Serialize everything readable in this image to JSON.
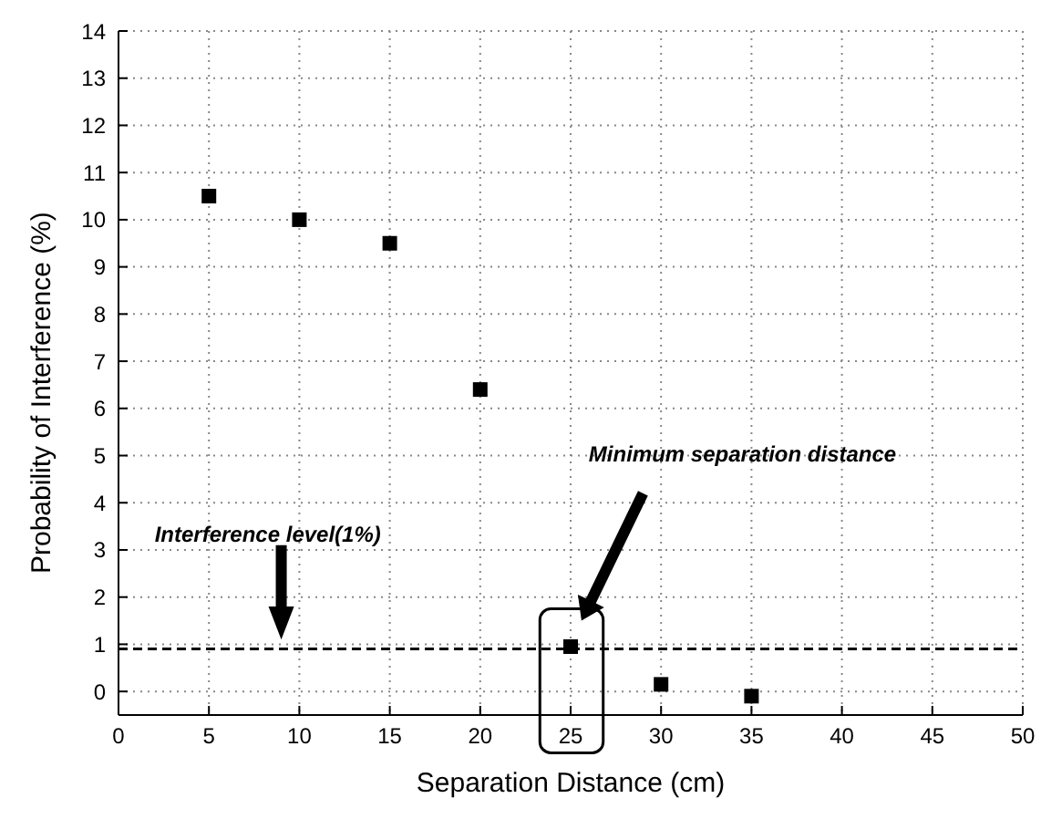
{
  "chart_data": {
    "type": "scatter",
    "xlabel": "Separation Distance (cm)",
    "ylabel": "Probability of Interference (%)",
    "x": [
      5,
      10,
      15,
      20,
      25,
      30,
      35
    ],
    "series": [
      {
        "color": "#000000",
        "values": [
          10.5,
          10,
          9.5,
          6.4,
          0.95,
          0.15,
          -0.1
        ]
      }
    ],
    "xlim": [
      0,
      50
    ],
    "xticks": [
      0,
      5,
      10,
      15,
      20,
      25,
      30,
      35,
      40,
      45,
      50
    ],
    "ylim": [
      -0.5,
      14
    ],
    "yticks": [
      0,
      1,
      2,
      3,
      4,
      5,
      6,
      7,
      8,
      9,
      10,
      11,
      12,
      13,
      14
    ],
    "grid": true,
    "marker": "square",
    "ref_lines": [
      {
        "axis": "y",
        "value": 0.9,
        "color": "#000000",
        "line_style": "dashed"
      }
    ],
    "annotations": [
      "Interference level(1%)",
      "Minimum separation distance"
    ]
  }
}
